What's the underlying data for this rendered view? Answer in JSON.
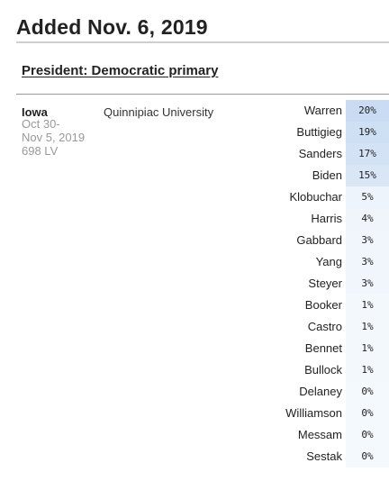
{
  "header": {
    "title": "Added Nov. 6, 2019"
  },
  "section": {
    "title": "President: Democratic primary"
  },
  "poll": {
    "state": "Iowa",
    "date_start": "Oct 30-",
    "date_end": "Nov 5, 2019",
    "sample": "698 LV",
    "pollster": "Quinnipiac University",
    "results": [
      {
        "candidate": "Warren",
        "value": "20%",
        "pct": 20,
        "color": "#c9dcf3"
      },
      {
        "candidate": "Buttigieg",
        "value": "19%",
        "pct": 19,
        "color": "#cde0f4"
      },
      {
        "candidate": "Sanders",
        "value": "17%",
        "pct": 17,
        "color": "#d3e3f5"
      },
      {
        "candidate": "Biden",
        "value": "15%",
        "pct": 15,
        "color": "#d8e6f6"
      },
      {
        "candidate": "Klobuchar",
        "value": "5%",
        "pct": 5,
        "color": "#eef4fb"
      },
      {
        "candidate": "Harris",
        "value": "4%",
        "pct": 4,
        "color": "#eff5fb"
      },
      {
        "candidate": "Gabbard",
        "value": "3%",
        "pct": 3,
        "color": "#f0f6fc"
      },
      {
        "candidate": "Yang",
        "value": "3%",
        "pct": 3,
        "color": "#f0f6fc"
      },
      {
        "candidate": "Steyer",
        "value": "3%",
        "pct": 3,
        "color": "#f0f6fc"
      },
      {
        "candidate": "Booker",
        "value": "1%",
        "pct": 1,
        "color": "#f3f8fd"
      },
      {
        "candidate": "Castro",
        "value": "1%",
        "pct": 1,
        "color": "#f3f8fd"
      },
      {
        "candidate": "Bennet",
        "value": "1%",
        "pct": 1,
        "color": "#f3f8fd"
      },
      {
        "candidate": "Bullock",
        "value": "1%",
        "pct": 1,
        "color": "#f3f8fd"
      },
      {
        "candidate": "Delaney",
        "value": "0%",
        "pct": 0,
        "color": "#f4f9fd"
      },
      {
        "candidate": "Williamson",
        "value": "0%",
        "pct": 0,
        "color": "#f4f9fd"
      },
      {
        "candidate": "Messam",
        "value": "0%",
        "pct": 0,
        "color": "#f4f9fd"
      },
      {
        "candidate": "Sestak",
        "value": "0%",
        "pct": 0,
        "color": "#f4f9fd"
      }
    ]
  }
}
